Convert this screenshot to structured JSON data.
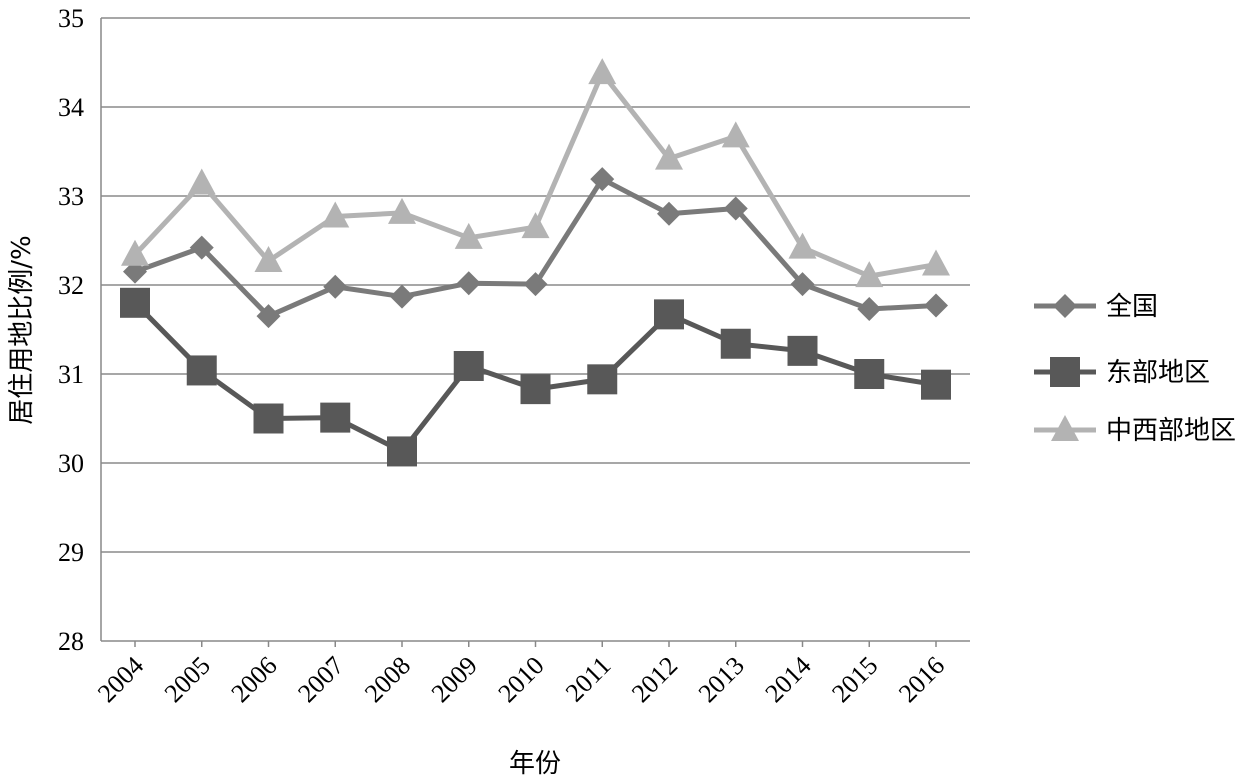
{
  "chart_data": {
    "type": "line",
    "title": "",
    "xlabel": "年份",
    "ylabel": "居住用地比例/%",
    "ylim": [
      28,
      35
    ],
    "yticks": [
      "28",
      "29",
      "30",
      "31",
      "32",
      "33",
      "34",
      "35"
    ],
    "categories": [
      "2004",
      "2005",
      "2006",
      "2007",
      "2008",
      "2009",
      "2010",
      "2011",
      "2012",
      "2013",
      "2014",
      "2015",
      "2016"
    ],
    "grid": "horizontal",
    "legend_position": "right",
    "series": [
      {
        "name": "全国",
        "marker": "diamond",
        "color": "#7a7a7a",
        "values": [
          32.15,
          32.42,
          31.65,
          31.98,
          31.87,
          32.02,
          32.01,
          33.19,
          32.8,
          32.86,
          32.01,
          31.73,
          31.77
        ]
      },
      {
        "name": "东部地区",
        "marker": "square",
        "color": "#585858",
        "values": [
          31.8,
          31.04,
          30.5,
          30.51,
          30.13,
          31.09,
          30.83,
          30.94,
          31.67,
          31.34,
          31.26,
          31.0,
          30.88
        ]
      },
      {
        "name": "中西部地区",
        "marker": "triangle",
        "color": "#b3b3b3",
        "values": [
          32.34,
          33.14,
          32.27,
          32.77,
          32.81,
          32.53,
          32.65,
          34.38,
          33.42,
          33.67,
          32.42,
          32.1,
          32.23
        ]
      }
    ]
  }
}
